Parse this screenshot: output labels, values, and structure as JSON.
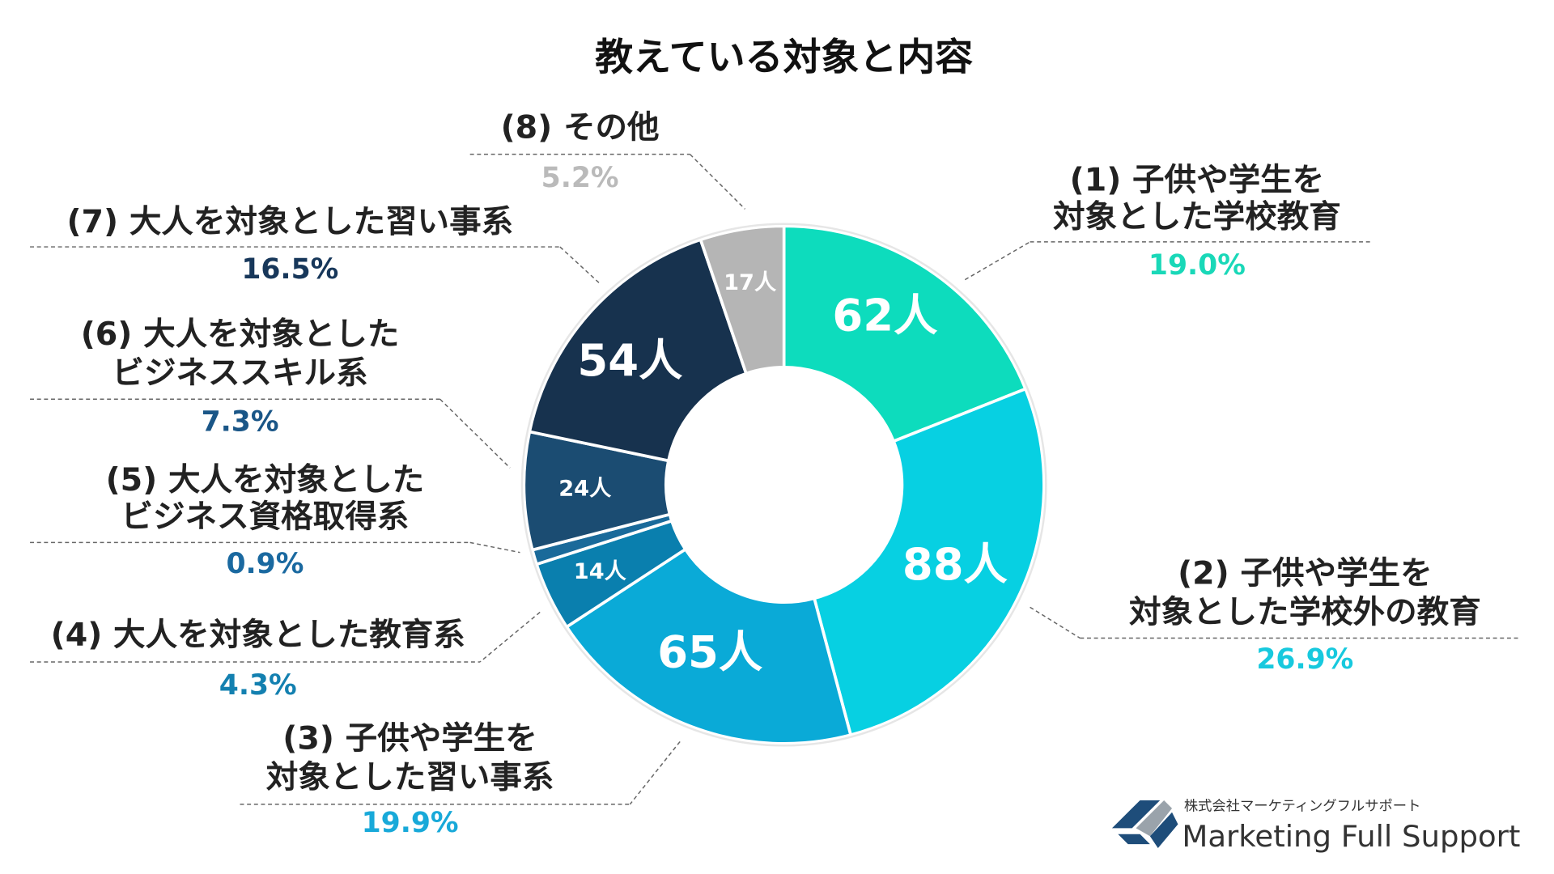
{
  "chart_data": {
    "type": "donut",
    "title": "教えている対象と内容",
    "categories": [
      [
        "(1) 子供や学生を",
        "対象とした学校教育"
      ],
      [
        "(2) 子供や学生を",
        "対象とした学校外の教育"
      ],
      [
        "(3) 子供や学生を",
        "対象とした習い事系"
      ],
      [
        "(4) 大人を対象とした教育系"
      ],
      [
        "(5) 大人を対象とした",
        "ビジネス資格取得系"
      ],
      [
        "(6) 大人を対象とした",
        "ビジネススキル系"
      ],
      [
        "(7) 大人を対象とした習い事系"
      ],
      [
        "(8) その他"
      ]
    ],
    "values": [
      62,
      88,
      65,
      14,
      3,
      24,
      54,
      17
    ],
    "value_labels": [
      "62人",
      "88人",
      "65人",
      "14人",
      null,
      "24人",
      "54人",
      "17人"
    ],
    "shares": [
      19.0,
      26.9,
      19.9,
      4.3,
      0.9,
      7.3,
      16.5,
      5.2
    ],
    "share_labels": [
      "19.0%",
      "26.9%",
      "19.9%",
      "4.3%",
      "0.9%",
      "7.3%",
      "16.5%",
      "5.2%"
    ],
    "colors": [
      "#0ddcbd",
      "#07d0e2",
      "#0aaad7",
      "#0a7fae",
      "#1a6a9a",
      "#1b4c72",
      "#17324e",
      "#b5b5b5"
    ],
    "label_colors": [
      "#19d8b8",
      "#17c9de",
      "#18a9d9",
      "#1380b0",
      "#1a69a0",
      "#1a5687",
      "#17375a",
      "#bababa"
    ]
  },
  "logo": {
    "company": "株式会社マーケティングフルサポート",
    "name": "Marketing Full Support"
  }
}
